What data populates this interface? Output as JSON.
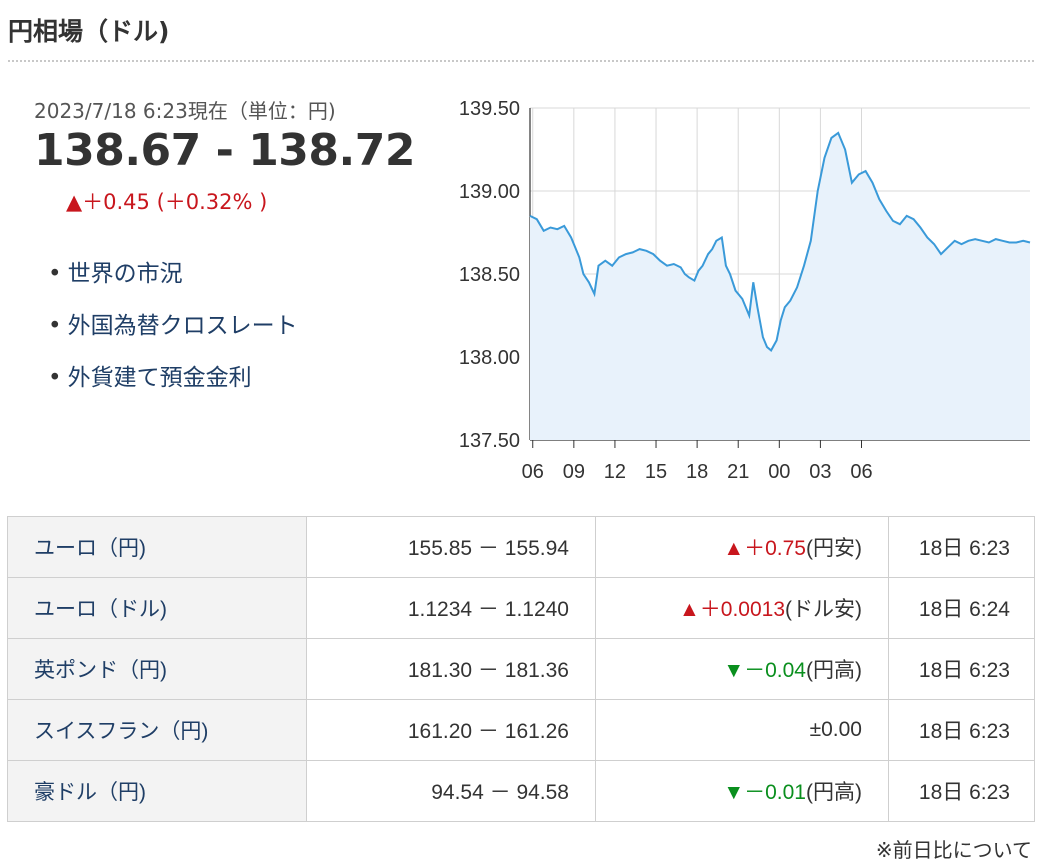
{
  "page_title": "円相場（ドル)",
  "quote": {
    "timestamp": "2023/7/18 6:23現在（単位：円)",
    "value": "138.67 - 138.72",
    "change": "▲＋0.45 (＋0.32% )"
  },
  "links": [
    "世界の市況",
    "外国為替クロスレート",
    "外貨建て預金金利"
  ],
  "chart_data": {
    "type": "area",
    "x_tick_labels": [
      "06",
      "09",
      "12",
      "15",
      "18",
      "21",
      "00",
      "03",
      "06"
    ],
    "y_tick_labels": [
      "139.50",
      "139.00",
      "138.50",
      "138.00",
      "137.50"
    ],
    "ylim": [
      137.5,
      139.5
    ],
    "grid": true,
    "line_color": "#3a9ad9",
    "fill_color": "#e8f2fb",
    "x_hours": [
      0,
      0.5,
      1,
      1.5,
      2,
      2.5,
      3,
      3.3,
      3.6,
      3.9,
      4.3,
      4.7,
      5,
      5.5,
      6,
      6.5,
      7,
      7.5,
      8,
      8.5,
      9,
      9.5,
      10,
      10.5,
      11,
      11.3,
      11.6,
      12,
      12.3,
      12.6,
      13,
      13.3,
      13.6,
      14,
      14.3,
      14.6,
      15,
      15.5,
      16,
      16.3,
      16.6,
      17,
      17.3,
      17.6,
      18,
      18.3,
      18.6,
      19,
      19.5,
      20,
      20.5,
      21,
      21.5,
      22,
      22.5,
      23,
      23.5,
      24,
      24.5,
      25,
      25.5,
      26,
      26.5,
      27,
      27.5,
      28,
      28.5,
      29,
      29.5,
      30,
      30.5,
      31,
      31.5,
      32,
      32.5,
      33,
      33.5,
      34,
      34.5,
      35,
      35.5,
      36,
      36.5
    ],
    "y_values": [
      138.85,
      138.83,
      138.76,
      138.78,
      138.77,
      138.79,
      138.72,
      138.66,
      138.6,
      138.5,
      138.45,
      138.38,
      138.55,
      138.58,
      138.55,
      138.6,
      138.62,
      138.63,
      138.65,
      138.64,
      138.62,
      138.58,
      138.55,
      138.56,
      138.54,
      138.5,
      138.48,
      138.46,
      138.52,
      138.55,
      138.62,
      138.65,
      138.7,
      138.72,
      138.55,
      138.5,
      138.4,
      138.35,
      138.25,
      138.45,
      138.3,
      138.12,
      138.06,
      138.04,
      138.1,
      138.22,
      138.3,
      138.34,
      138.42,
      138.55,
      138.7,
      139.0,
      139.2,
      139.32,
      139.35,
      139.25,
      139.05,
      139.1,
      139.12,
      139.05,
      138.95,
      138.88,
      138.82,
      138.8,
      138.85,
      138.83,
      138.78,
      138.72,
      138.68,
      138.62,
      138.66,
      138.7,
      138.68,
      138.7,
      138.71,
      138.7,
      138.69,
      138.71,
      138.7,
      138.69,
      138.69,
      138.7,
      138.69
    ]
  },
  "table": {
    "rows": [
      {
        "name": "ユーロ（円)",
        "rate": "155.85 － 155.94",
        "change": "▲＋0.75",
        "change_note": "(円安)",
        "dir": "up",
        "time": "18日 6:23"
      },
      {
        "name": "ユーロ（ドル)",
        "rate": "1.1234 － 1.1240",
        "change": "▲＋0.0013",
        "change_note": "(ドル安)",
        "dir": "up",
        "time": "18日 6:24"
      },
      {
        "name": "英ポンド（円)",
        "rate": "181.30 － 181.36",
        "change": "▼－0.04",
        "change_note": "(円高)",
        "dir": "down",
        "time": "18日 6:23"
      },
      {
        "name": "スイスフラン（円)",
        "rate": "161.20 － 161.26",
        "change": "±0.00",
        "change_note": "",
        "dir": "flat",
        "time": "18日 6:23"
      },
      {
        "name": "豪ドル（円)",
        "rate": "94.54 － 94.58",
        "change": "▼－0.01",
        "change_note": "(円高)",
        "dir": "down",
        "time": "18日 6:23"
      }
    ]
  },
  "footnote": "※前日比について"
}
